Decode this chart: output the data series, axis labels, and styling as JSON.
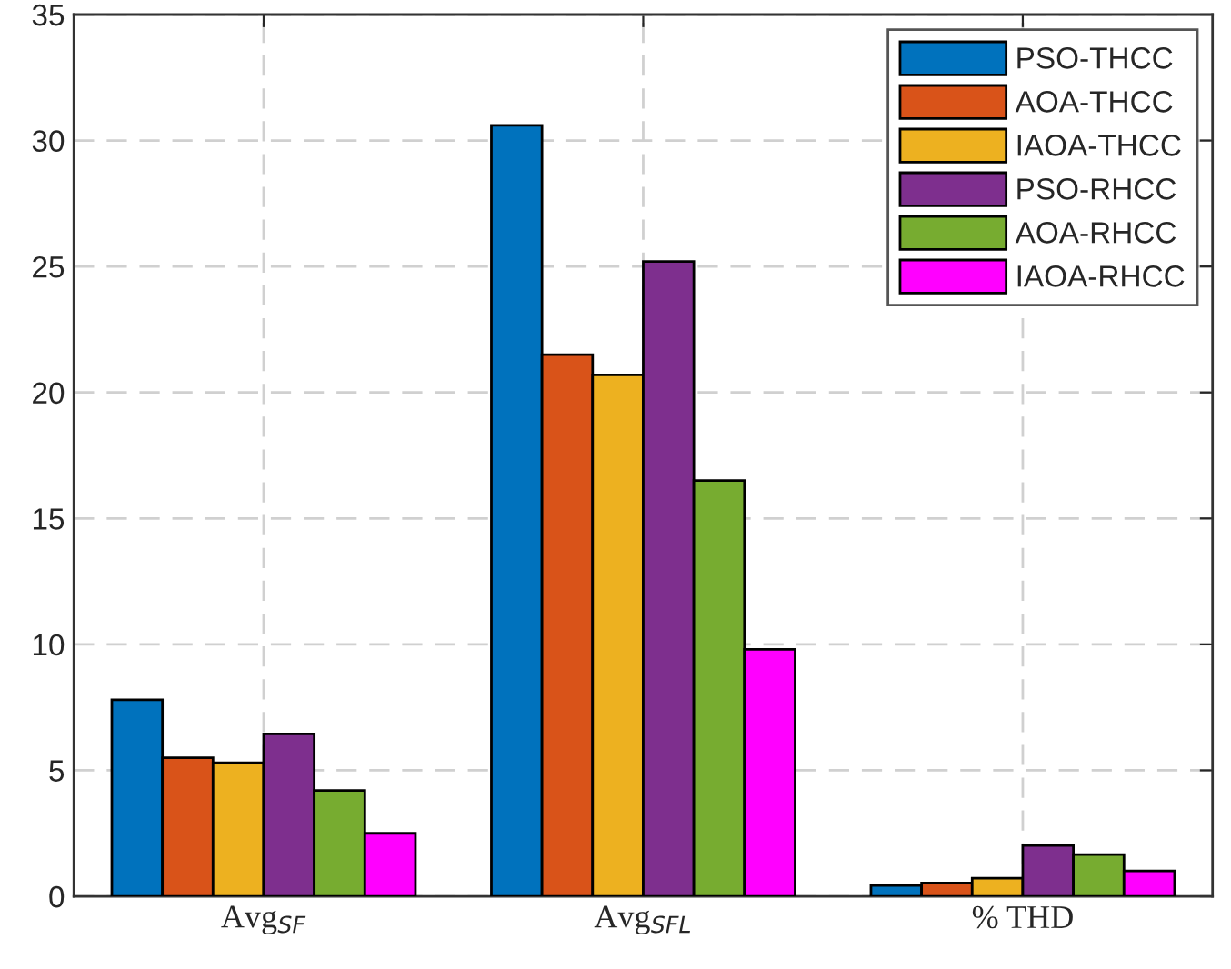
{
  "chart_data": {
    "type": "bar",
    "categories": [
      "Avg$_{SF}$",
      "Avg$_{SFL}$",
      "% THD"
    ],
    "series": [
      {
        "name": "PSO-THCC",
        "color": "#0072bd",
        "values": [
          7.8,
          30.6,
          0.43
        ]
      },
      {
        "name": "AOA-THCC",
        "color": "#d95319",
        "values": [
          5.5,
          21.5,
          0.53
        ]
      },
      {
        "name": "IAOA-THCC",
        "color": "#edb120",
        "values": [
          5.3,
          20.7,
          0.72
        ]
      },
      {
        "name": "PSO-RHCC",
        "color": "#7e2f8e",
        "values": [
          6.45,
          25.2,
          2.02
        ]
      },
      {
        "name": "AOA-RHCC",
        "color": "#77ac30",
        "values": [
          4.2,
          16.5,
          1.66
        ]
      },
      {
        "name": "IAOA-RHCC",
        "color": "#ff00ff",
        "values": [
          2.5,
          9.8,
          1.01
        ]
      }
    ],
    "ylim": [
      0,
      35
    ],
    "yticks": [
      0,
      5,
      10,
      15,
      20,
      25,
      30,
      35
    ],
    "grid": true,
    "legend": "top right"
  }
}
